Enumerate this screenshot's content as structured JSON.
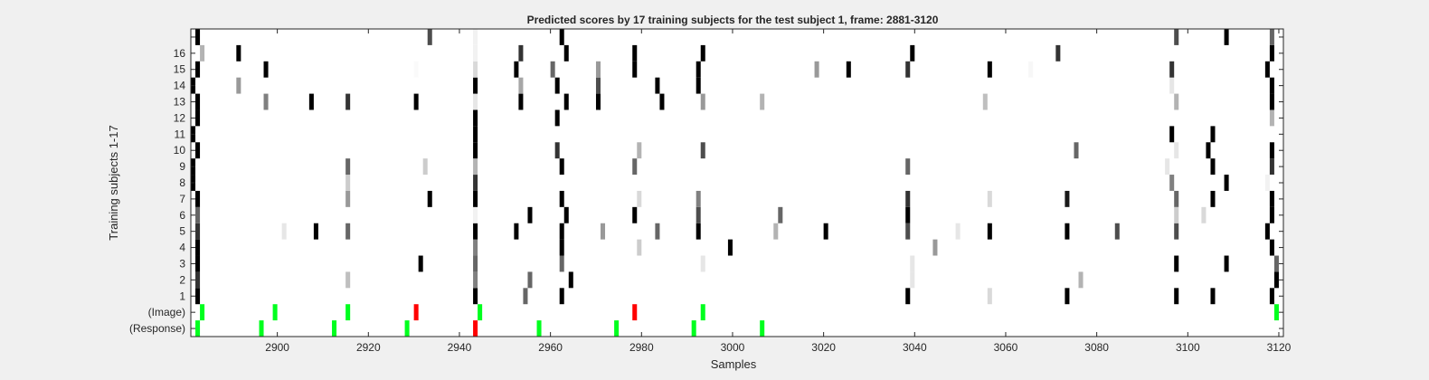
{
  "chart_data": {
    "type": "heatmap",
    "title": "Predicted scores by 17 training subjects for the test subject 1, frame: 2881-3120",
    "xlabel": "Samples",
    "ylabel": "Training subjects 1-17",
    "xlim": [
      2881,
      3120
    ],
    "x_ticks": [
      2900,
      2920,
      2940,
      2960,
      2980,
      3000,
      3020,
      3040,
      3060,
      3080,
      3100,
      3120
    ],
    "y_rows": [
      "(Response)",
      "(Image)",
      "1",
      "2",
      "3",
      "4",
      "5",
      "6",
      "7",
      "8",
      "9",
      "10",
      "11",
      "12",
      "13",
      "14",
      "15",
      "16",
      ""
    ],
    "grid": false,
    "colors": {
      "green": "#00ff1e",
      "red": "#ff0000",
      "black": "#000000"
    },
    "score_rows": [
      {
        "row": 1,
        "cells": [
          [
            2882,
            1
          ],
          [
            2943,
            1
          ],
          [
            2954,
            0.6
          ],
          [
            2962,
            1
          ],
          [
            3038,
            1
          ],
          [
            3056,
            0.15
          ],
          [
            3073,
            1
          ],
          [
            3097,
            1
          ],
          [
            3105,
            1
          ],
          [
            3118,
            1
          ]
        ]
      },
      {
        "row": 2,
        "cells": [
          [
            2882,
            0.8
          ],
          [
            2915,
            0.25
          ],
          [
            2943,
            0.5
          ],
          [
            2955,
            0.6
          ],
          [
            2964,
            1
          ],
          [
            3039,
            0.1
          ],
          [
            3076,
            0.3
          ],
          [
            3119,
            1
          ]
        ]
      },
      {
        "row": 3,
        "cells": [
          [
            2882,
            1
          ],
          [
            2931,
            1
          ],
          [
            2943,
            0.6
          ],
          [
            2962,
            0.6
          ],
          [
            2993,
            0.1
          ],
          [
            3039,
            0.1
          ],
          [
            3097,
            1
          ],
          [
            3108,
            1
          ],
          [
            3119,
            0.6
          ]
        ]
      },
      {
        "row": 4,
        "cells": [
          [
            2882,
            1
          ],
          [
            2943,
            0.5
          ],
          [
            2962,
            1
          ],
          [
            2979,
            0.2
          ],
          [
            2999,
            1
          ],
          [
            3044,
            0.4
          ],
          [
            3118,
            1
          ]
        ]
      },
      {
        "row": 5,
        "cells": [
          [
            2882,
            0.8
          ],
          [
            2901,
            0.1
          ],
          [
            2908,
            1
          ],
          [
            2915,
            0.6
          ],
          [
            2943,
            1
          ],
          [
            2952,
            1
          ],
          [
            2962,
            1
          ],
          [
            2971,
            0.4
          ],
          [
            2983,
            0.6
          ],
          [
            2992,
            1
          ],
          [
            3009,
            0.3
          ],
          [
            3020,
            1
          ],
          [
            3038,
            0.7
          ],
          [
            3049,
            0.1
          ],
          [
            3056,
            1
          ],
          [
            3073,
            1
          ],
          [
            3084,
            0.7
          ],
          [
            3097,
            0.7
          ],
          [
            3117,
            1
          ]
        ]
      },
      {
        "row": 6,
        "cells": [
          [
            2882,
            0.6
          ],
          [
            2943,
            0.05
          ],
          [
            2955,
            1
          ],
          [
            2963,
            1
          ],
          [
            2978,
            1
          ],
          [
            2992,
            0.7
          ],
          [
            3010,
            0.6
          ],
          [
            3038,
            1
          ],
          [
            3097,
            0.2
          ],
          [
            3103,
            0.15
          ],
          [
            3118,
            1
          ]
        ]
      },
      {
        "row": 7,
        "cells": [
          [
            2882,
            1
          ],
          [
            2915,
            0.4
          ],
          [
            2933,
            1
          ],
          [
            2943,
            1
          ],
          [
            2962,
            1
          ],
          [
            2979,
            0.15
          ],
          [
            2992,
            0.5
          ],
          [
            3038,
            0.8
          ],
          [
            3056,
            0.15
          ],
          [
            3073,
            0.9
          ],
          [
            3097,
            0.6
          ],
          [
            3105,
            1
          ],
          [
            3118,
            1
          ]
        ]
      },
      {
        "row": 8,
        "cells": [
          [
            2881,
            1
          ],
          [
            2915,
            0.2
          ],
          [
            2943,
            0.8
          ],
          [
            3096,
            0.5
          ],
          [
            3108,
            1
          ],
          [
            3117,
            0.05
          ]
        ]
      },
      {
        "row": 9,
        "cells": [
          [
            2881,
            1
          ],
          [
            2915,
            0.6
          ],
          [
            2932,
            0.2
          ],
          [
            2943,
            0.3
          ],
          [
            2962,
            1
          ],
          [
            2978,
            0.6
          ],
          [
            3038,
            0.6
          ],
          [
            3095,
            0.1
          ],
          [
            3105,
            1
          ],
          [
            3118,
            0.8
          ]
        ]
      },
      {
        "row": 10,
        "cells": [
          [
            2882,
            1
          ],
          [
            2943,
            1
          ],
          [
            2961,
            0.8
          ],
          [
            2979,
            0.3
          ],
          [
            2993,
            0.7
          ],
          [
            3075,
            0.6
          ],
          [
            3097,
            0.1
          ],
          [
            3104,
            1
          ],
          [
            3118,
            1
          ]
        ]
      },
      {
        "row": 11,
        "cells": [
          [
            2881,
            1
          ],
          [
            2943,
            1
          ],
          [
            3096,
            1
          ],
          [
            3105,
            1
          ]
        ]
      },
      {
        "row": 12,
        "cells": [
          [
            2882,
            1
          ],
          [
            2943,
            1
          ],
          [
            2961,
            1
          ],
          [
            3118,
            0.3
          ]
        ]
      },
      {
        "row": 13,
        "cells": [
          [
            2882,
            1
          ],
          [
            2897,
            0.5
          ],
          [
            2907,
            1
          ],
          [
            2915,
            0.8
          ],
          [
            2930,
            1
          ],
          [
            2943,
            0.1
          ],
          [
            2953,
            1
          ],
          [
            2963,
            1
          ],
          [
            2970,
            1
          ],
          [
            2984,
            1
          ],
          [
            2993,
            0.4
          ],
          [
            3006,
            0.3
          ],
          [
            3055,
            0.25
          ],
          [
            3097,
            0.3
          ],
          [
            3118,
            1
          ]
        ]
      },
      {
        "row": 14,
        "cells": [
          [
            2881,
            1
          ],
          [
            2891,
            0.4
          ],
          [
            2943,
            1
          ],
          [
            2953,
            0.35
          ],
          [
            2961,
            1
          ],
          [
            2970,
            0.7
          ],
          [
            2983,
            1
          ],
          [
            2992,
            1
          ],
          [
            3096,
            0.1
          ],
          [
            3118,
            1
          ]
        ]
      },
      {
        "row": 15,
        "cells": [
          [
            2882,
            1
          ],
          [
            2897,
            1
          ],
          [
            2930,
            0.02
          ],
          [
            2943,
            0.15
          ],
          [
            2952,
            1
          ],
          [
            2960,
            0.6
          ],
          [
            2970,
            0.4
          ],
          [
            2978,
            1
          ],
          [
            2992,
            1
          ],
          [
            3018,
            0.4
          ],
          [
            3025,
            1
          ],
          [
            3038,
            0.8
          ],
          [
            3056,
            1
          ],
          [
            3065,
            0.03
          ],
          [
            3096,
            0.8
          ],
          [
            3117,
            1
          ]
        ]
      },
      {
        "row": 16,
        "cells": [
          [
            2883,
            0.3
          ],
          [
            2891,
            1
          ],
          [
            2943,
            0.05
          ],
          [
            2953,
            0.8
          ],
          [
            2963,
            1
          ],
          [
            2978,
            1
          ],
          [
            2993,
            1
          ],
          [
            3039,
            1
          ],
          [
            3071,
            0.8
          ],
          [
            3118,
            1
          ]
        ]
      },
      {
        "row": 17,
        "cells": [
          [
            2882,
            1
          ],
          [
            2933,
            0.7
          ],
          [
            2943,
            0.05
          ],
          [
            2962,
            1
          ],
          [
            3097,
            0.7
          ],
          [
            3108,
            1
          ],
          [
            3118,
            0.6
          ]
        ]
      }
    ],
    "image_markers": [
      {
        "x": 2883,
        "color": "green"
      },
      {
        "x": 2899,
        "color": "green"
      },
      {
        "x": 2915,
        "color": "green"
      },
      {
        "x": 2930,
        "color": "red"
      },
      {
        "x": 2944,
        "color": "green"
      },
      {
        "x": 2978,
        "color": "red"
      },
      {
        "x": 2993,
        "color": "green"
      },
      {
        "x": 3119,
        "color": "green"
      }
    ],
    "response_markers": [
      {
        "x": 2882,
        "color": "green"
      },
      {
        "x": 2896,
        "color": "green"
      },
      {
        "x": 2912,
        "color": "green"
      },
      {
        "x": 2928,
        "color": "green"
      },
      {
        "x": 2943,
        "color": "red"
      },
      {
        "x": 2957,
        "color": "green"
      },
      {
        "x": 2974,
        "color": "green"
      },
      {
        "x": 2991,
        "color": "green"
      },
      {
        "x": 3006,
        "color": "green"
      }
    ]
  }
}
